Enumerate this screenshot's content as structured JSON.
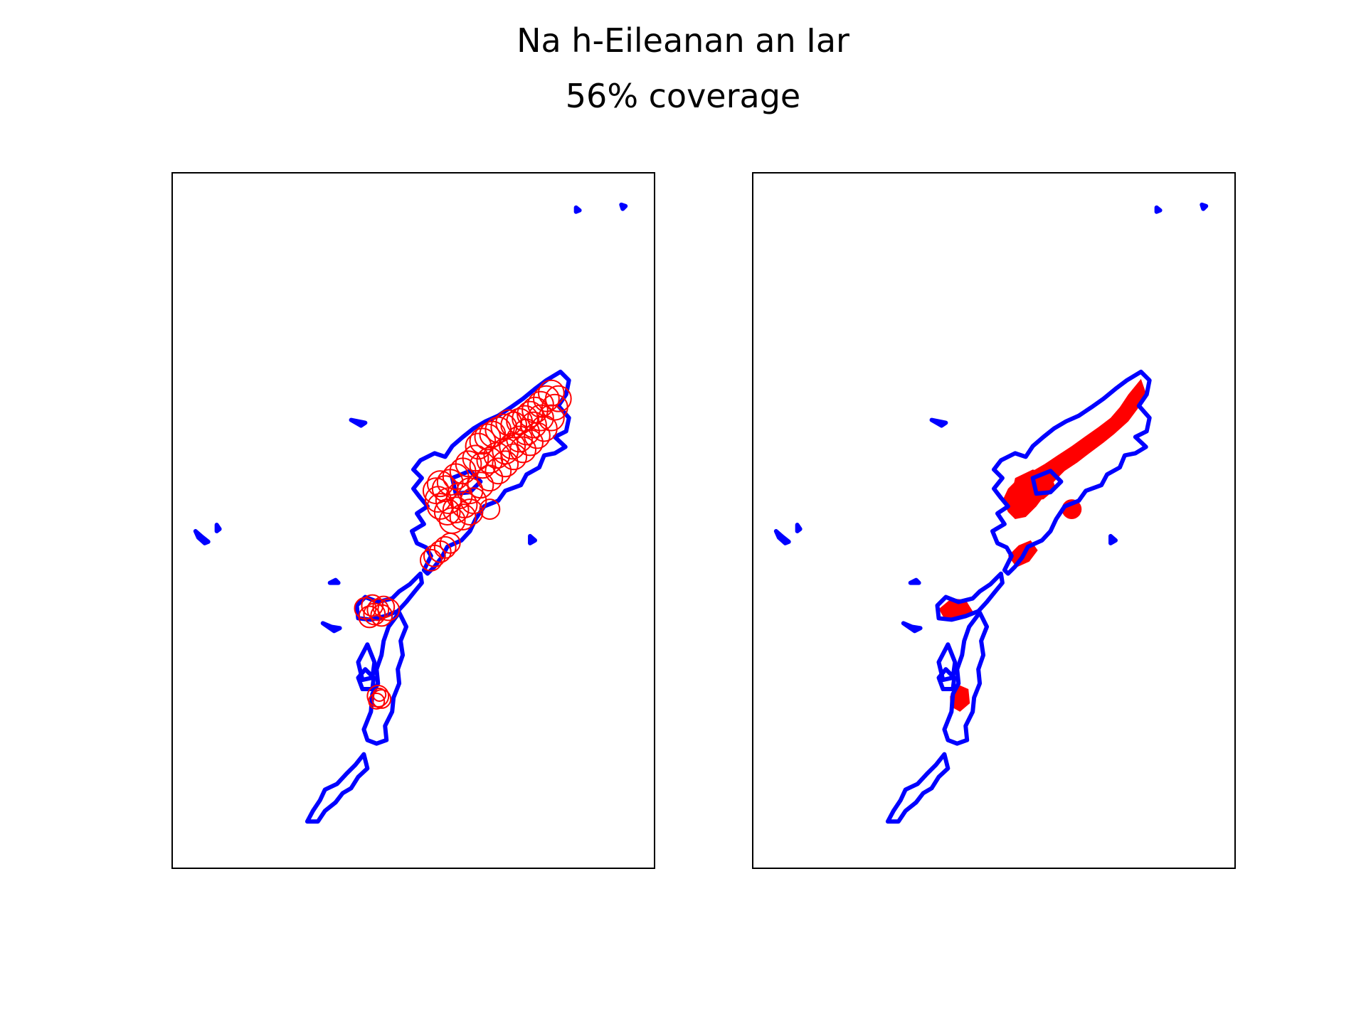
{
  "figure": {
    "title": "Na h-Eileanan an Iar",
    "subtitle": "56% coverage"
  },
  "colors": {
    "coastline": "#0000ff",
    "coverage": "#ff0000",
    "axes": "#000000",
    "background": "#ffffff"
  },
  "panels": [
    {
      "id": "left",
      "markers": "hollow-circles"
    },
    {
      "id": "right",
      "markers": "filled-coverage-area"
    }
  ],
  "chart_data": {
    "type": "map",
    "region": "Na h-Eileanan an Iar",
    "coverage_percent": 56,
    "axes_ticks": "none",
    "panels": 2
  }
}
